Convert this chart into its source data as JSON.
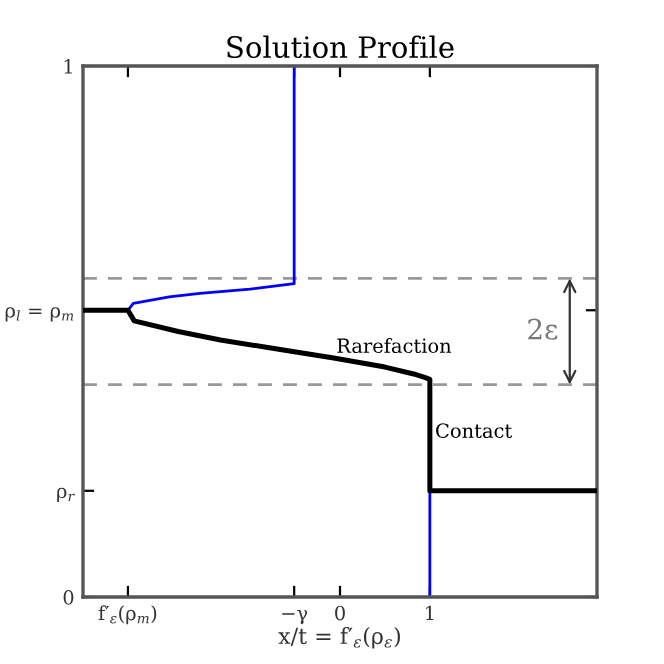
{
  "chart_data": {
    "type": "line",
    "title": "Solution Profile",
    "xlabel": "x/t = f′$_{ε}$(ρ$_{ε}$)",
    "xlim": [
      -2.86,
      2.86
    ],
    "ylim": [
      0,
      1
    ],
    "xticks": [
      {
        "value": -2.36,
        "label": "f′$_{ε}$(ρ$_{m}$)"
      },
      {
        "value": -0.51,
        "label": "−γ"
      },
      0,
      1
    ],
    "yticks": [
      0,
      {
        "value": 0.2,
        "label": "ρ$_{r}$"
      },
      {
        "value": 0.54,
        "label": "ρ$_{l}$ = ρ$_{m}$"
      },
      1
    ],
    "grid": false,
    "marker": "none",
    "series": [
      {
        "color": "#0000ff",
        "x": [
          1,
          1
        ],
        "values": [
          0,
          0.2
        ]
      },
      {
        "color": "#0000ff",
        "x": [
          -2.36,
          -2.3,
          -1.9,
          -1.56,
          -1.0,
          -0.51,
          -0.51
        ],
        "values": [
          0.54,
          0.553,
          0.565,
          0.572,
          0.58,
          0.59,
          1
        ]
      },
      {
        "color": "#000000",
        "x": [
          -2.86,
          -2.36,
          -2.29,
          -1.8,
          -1.33,
          -0.7,
          -0.07,
          0.5,
          0.82,
          0.95,
          1,
          1,
          2.86
        ],
        "values": [
          0.54,
          0.54,
          0.52,
          0.5,
          0.484,
          0.467,
          0.45,
          0.433,
          0.42,
          0.413,
          0.41,
          0.2,
          0.2
        ]
      }
    ],
    "ref_lines": [
      {
        "axis": "y",
        "value": 0.6,
        "color": "#999999",
        "line_style": "dashed"
      },
      {
        "axis": "y",
        "value": 0.4,
        "color": "#999999",
        "line_style": "dashed"
      }
    ],
    "annotations": [
      "Rarefaction",
      "Contact",
      "2ε"
    ]
  }
}
